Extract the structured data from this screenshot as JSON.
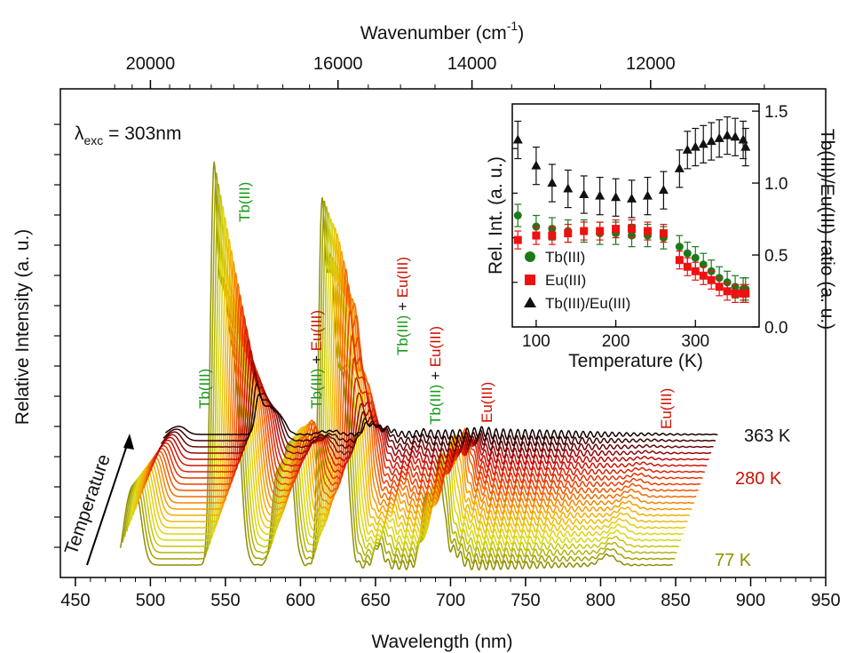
{
  "chart_data": [
    {
      "type": "line",
      "xlabel": "Wavelength (nm)",
      "x2label_main": "Wavenumber (cm",
      "x2label_sup": "-1",
      "x2label_close": ")",
      "ylabel": "Relative Intensity (a. u.)",
      "excitation_prefix": "λ",
      "excitation_sub": "exc",
      "excitation_value": " = 303nm",
      "xlim": [
        440,
        950
      ],
      "x_ticks": [
        "450",
        "500",
        "550",
        "600",
        "650",
        "700",
        "750",
        "800",
        "850",
        "900",
        "950"
      ],
      "x2_ticks": [
        {
          "value": 20000,
          "label": "20000"
        },
        {
          "value": 16000,
          "label": "16000"
        },
        {
          "value": 14000,
          "label": "14000"
        },
        {
          "value": 12000,
          "label": "12000"
        }
      ],
      "temperature_axis_label": "Temperature",
      "temperature_labels": [
        {
          "label": "363 K",
          "color": "#111111"
        },
        {
          "label": "280 K",
          "color": "#cc1100"
        },
        {
          "label": "77 K",
          "color": "#8f8f00"
        }
      ],
      "curve_count": 22,
      "waterfall_shift_nm_total": 30,
      "peaks": [
        {
          "label": "Tb(III)",
          "x": 490,
          "rel_height": 0.2,
          "color": "#1a9a1a"
        },
        {
          "label": "Tb(III)",
          "x": 545,
          "rel_height": 1.0,
          "color": "#1a9a1a"
        },
        {
          "label_a": "Tb(III)",
          "plus": " + ",
          "label_b": "Eu(III)",
          "x": 590,
          "rel_height": 0.4
        },
        {
          "label_a": "Tb(III)",
          "plus": " + ",
          "label_b": "Eu(III)",
          "x": 620,
          "rel_height": 1.05
        },
        {
          "label_a": "Tb(III)",
          "plus": " + ",
          "label_b": "Eu(III)",
          "x": 650,
          "rel_height": 0.12
        },
        {
          "label": "Eu(III)",
          "x": 695,
          "rel_height": 0.35,
          "color": "#cc1100"
        },
        {
          "label": "Eu(III)",
          "x": 810,
          "rel_height": 0.1,
          "color": "#cc1100"
        }
      ]
    },
    {
      "type": "scatter",
      "title": "",
      "xlabel": "Temperature (K)",
      "ylabel": "Rel. Int. (a. u.)",
      "y2label": "Tb(III)/Eu(III) ratio (a. u.)",
      "xlim": [
        70,
        380
      ],
      "ylim_left": [
        0,
        1
      ],
      "ylim_right": [
        0,
        1.55
      ],
      "x_ticks": [
        "100",
        "200",
        "300"
      ],
      "y2_ticks": [
        "0.0",
        "0.5",
        "1.0",
        "1.5"
      ],
      "x": [
        77,
        100,
        120,
        140,
        160,
        180,
        200,
        220,
        240,
        260,
        280,
        290,
        300,
        310,
        320,
        330,
        340,
        350,
        360,
        363
      ],
      "series": [
        {
          "name": "Tb(III)",
          "color": "#1a7a1a",
          "marker": "circle",
          "axis": "left",
          "values": [
            0.5,
            0.45,
            0.44,
            0.43,
            0.43,
            0.42,
            0.42,
            0.41,
            0.41,
            0.4,
            0.36,
            0.33,
            0.31,
            0.28,
            0.25,
            0.22,
            0.2,
            0.18,
            0.17,
            0.17
          ],
          "error": 0.05
        },
        {
          "name": "Eu(III)",
          "color": "#ee1111",
          "marker": "square",
          "axis": "left",
          "values": [
            0.39,
            0.41,
            0.41,
            0.42,
            0.43,
            0.43,
            0.44,
            0.44,
            0.43,
            0.42,
            0.3,
            0.27,
            0.25,
            0.23,
            0.21,
            0.18,
            0.16,
            0.15,
            0.15,
            0.15
          ],
          "error": 0.04
        },
        {
          "name": "Tb(III)/Eu(III)",
          "color": "#111111",
          "marker": "triangle",
          "axis": "right",
          "values": [
            1.3,
            1.12,
            1.0,
            0.96,
            0.92,
            0.91,
            0.9,
            0.89,
            0.91,
            0.95,
            1.1,
            1.23,
            1.25,
            1.27,
            1.29,
            1.31,
            1.33,
            1.32,
            1.3,
            1.25
          ],
          "error": 0.13
        }
      ]
    }
  ]
}
